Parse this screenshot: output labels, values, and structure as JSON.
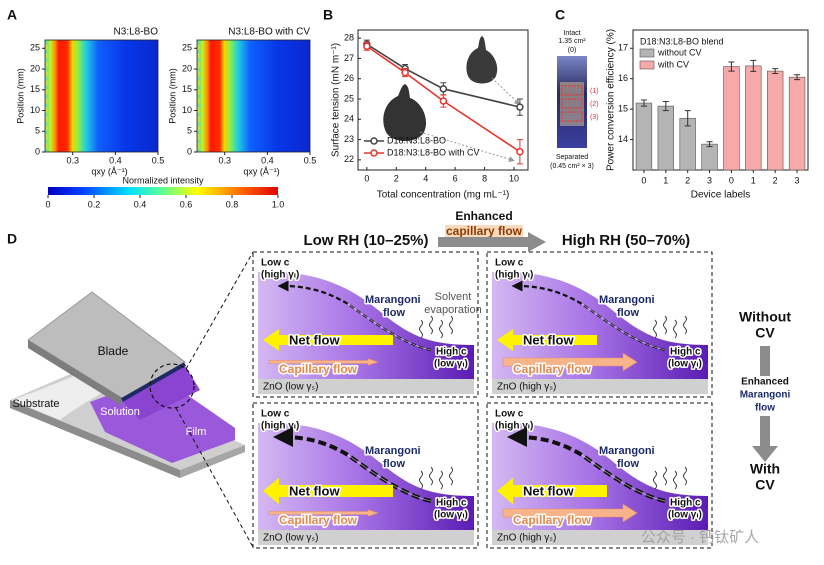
{
  "figure": {
    "panel_labels": [
      "A",
      "B",
      "C",
      "D"
    ],
    "panel_a": {
      "maps": [
        {
          "title": "N3:L8-BO"
        },
        {
          "title": "N3:L8-BO with CV"
        }
      ],
      "ylabel": "Position (mm)",
      "xlabel": "qxy (Å⁻¹)",
      "xlim": [
        0.235,
        0.5
      ],
      "xticks": [
        0.3,
        0.4,
        0.5
      ],
      "ylim": [
        0,
        27
      ],
      "yticks": [
        0,
        5,
        10,
        15,
        20,
        25
      ],
      "colorbar": {
        "label": "Normalized intensity",
        "lim": [
          0,
          1
        ],
        "ticks": [
          0,
          0.2,
          0.4,
          0.6,
          0.8,
          {
            "value": 1,
            "label": "1.0"
          }
        ]
      }
    },
    "panel_c_inset": {
      "top": "Intact",
      "area": "1.35 cm²",
      "labels": [
        "(0)",
        "(1)",
        "(2)",
        "(3)"
      ],
      "bottom": "Separated",
      "bottom_area": "(0.45 cm² × 3)"
    },
    "panel_d": {
      "low_rh": "Low RH (10–25%)",
      "high_rh": "High RH (50–70%)",
      "enhanced": "Enhanced",
      "capillary": "capillary flow",
      "blade": "Blade",
      "substrate": "Substrate",
      "solution": "Solution",
      "film": "Film",
      "evaporation": [
        "Solvent",
        "evaporation"
      ],
      "cells": [
        {
          "low_c": "Low c",
          "low_c_gamma": "(high γₗ)",
          "marangoni": [
            "Marangoni",
            "flow"
          ],
          "net": "Net flow",
          "cap": "Capillary flow",
          "high_c": "High c",
          "high_c_gamma": "(low γₗ)",
          "zno": "ZnO (low γₛ)"
        },
        {
          "low_c": "Low c",
          "low_c_gamma": "(high γₗ)",
          "marangoni": [
            "Marangoni",
            "flow"
          ],
          "net": "Net flow",
          "cap": "Capillary flow",
          "high_c": "High c",
          "high_c_gamma": "(low γₗ)",
          "zno": "ZnO (high γₛ)"
        },
        {
          "low_c": "Low c",
          "low_c_gamma": "(high γₗ)",
          "marangoni": [
            "Marangoni",
            "flow"
          ],
          "net": "Net flow",
          "cap": "Capillary flow",
          "high_c": "High c",
          "high_c_gamma": "(low γₗ)",
          "zno": "ZnO (low γₛ)"
        },
        {
          "low_c": "Low c",
          "low_c_gamma": "(high γₗ)",
          "marangoni": [
            "Marangoni",
            "flow"
          ],
          "net": "Net flow",
          "cap": "Capillary flow",
          "high_c": "High c",
          "high_c_gamma": "(low γₗ)",
          "zno": "ZnO (high γₛ)"
        }
      ],
      "side": {
        "without": [
          "Without",
          "CV"
        ],
        "enhanced": [
          "Enhanced",
          "Marangoni",
          "flow"
        ],
        "with": [
          "With",
          "CV"
        ]
      }
    },
    "watermark": "公众号 · 钙钛矿人"
  },
  "chart_data": [
    {
      "type": "line",
      "xlabel": "Total concentration (mg mL⁻¹)",
      "ylabel": "Surface tension (mN m⁻¹)",
      "x": [
        0,
        2.6,
        5.2,
        10.4
      ],
      "xlim": [
        -0.6,
        10.95
      ],
      "xticks": [
        0,
        2,
        4,
        6,
        8,
        10
      ],
      "ylim": [
        21.5,
        28.4
      ],
      "yticks": [
        22,
        23,
        24,
        25,
        26,
        27,
        28
      ],
      "series": [
        {
          "name": "D18:N3:L8-BO",
          "color": "#444444",
          "values": [
            27.7,
            26.5,
            25.5,
            24.6
          ],
          "errors": [
            0.2,
            0.2,
            0.3,
            0.4
          ]
        },
        {
          "name": "D18:N3:L8-BO with CV",
          "color": "#e8342c",
          "values": [
            27.6,
            26.3,
            24.9,
            22.4
          ],
          "errors": [
            0.2,
            0.2,
            0.3,
            0.6
          ]
        }
      ]
    },
    {
      "type": "bar",
      "xlabel": "Device labels",
      "ylabel": "Power conversion efficiency (%)",
      "legend_title": "D18:N3:L8-BO blend",
      "categories": [
        "0",
        "1",
        "2",
        "3",
        "0",
        "1",
        "2",
        "3"
      ],
      "ylim": [
        13.0,
        17.6
      ],
      "yticks": [
        14,
        15,
        16,
        17
      ],
      "series": [
        {
          "name": "without CV",
          "color": "#b4b4b4",
          "values": [
            15.2,
            15.1,
            14.7,
            13.85,
            null,
            null,
            null,
            null
          ],
          "errors": [
            0.1,
            0.15,
            0.25,
            0.08,
            null,
            null,
            null,
            null
          ]
        },
        {
          "name": "with CV",
          "color": "#f6a9a9",
          "values": [
            null,
            null,
            null,
            null,
            16.4,
            16.42,
            16.25,
            16.05
          ],
          "errors": [
            null,
            null,
            null,
            null,
            0.15,
            0.18,
            0.08,
            0.08
          ]
        }
      ]
    }
  ]
}
